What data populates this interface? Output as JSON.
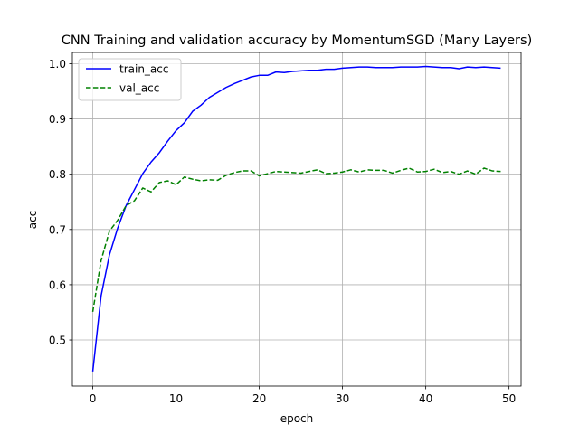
{
  "chart_data": {
    "type": "line",
    "title": "CNN Training and validation accuracy by MomentumSGD (Many Layers)",
    "xlabel": "epoch",
    "ylabel": "acc",
    "xlim": [
      -2.45,
      51.45
    ],
    "ylim": [
      0.4166,
      1.0204
    ],
    "xticks": [
      0,
      10,
      20,
      30,
      40,
      50
    ],
    "yticks": [
      0.5,
      0.6,
      0.7,
      0.8,
      0.9,
      1.0
    ],
    "xtick_labels": [
      "0",
      "10",
      "20",
      "30",
      "40",
      "50"
    ],
    "ytick_labels": [
      "0.5",
      "0.6",
      "0.7",
      "0.8",
      "0.9",
      "1.0"
    ],
    "grid": true,
    "legend_position": "top-left",
    "x": [
      0,
      1,
      2,
      3,
      4,
      5,
      6,
      7,
      8,
      9,
      10,
      11,
      12,
      13,
      14,
      15,
      16,
      17,
      18,
      19,
      20,
      21,
      22,
      23,
      24,
      25,
      26,
      27,
      28,
      29,
      30,
      31,
      32,
      33,
      34,
      35,
      36,
      37,
      38,
      39,
      40,
      41,
      42,
      43,
      44,
      45,
      46,
      47,
      48,
      49
    ],
    "series": [
      {
        "name": "train_acc",
        "color": "#0000ff",
        "style": "solid",
        "values": [
          0.443,
          0.58,
          0.654,
          0.703,
          0.743,
          0.772,
          0.801,
          0.822,
          0.839,
          0.86,
          0.879,
          0.893,
          0.914,
          0.925,
          0.939,
          0.948,
          0.957,
          0.964,
          0.97,
          0.976,
          0.979,
          0.979,
          0.985,
          0.984,
          0.986,
          0.987,
          0.988,
          0.988,
          0.99,
          0.99,
          0.992,
          0.993,
          0.994,
          0.994,
          0.993,
          0.993,
          0.993,
          0.994,
          0.994,
          0.994,
          0.995,
          0.994,
          0.993,
          0.993,
          0.991,
          0.994,
          0.993,
          0.994,
          0.993,
          0.992
        ]
      },
      {
        "name": "val_acc",
        "color": "#008000",
        "style": "dashed",
        "values": [
          0.551,
          0.644,
          0.697,
          0.717,
          0.743,
          0.752,
          0.775,
          0.768,
          0.785,
          0.788,
          0.781,
          0.795,
          0.791,
          0.788,
          0.79,
          0.789,
          0.798,
          0.803,
          0.806,
          0.806,
          0.797,
          0.801,
          0.805,
          0.804,
          0.803,
          0.802,
          0.805,
          0.808,
          0.801,
          0.802,
          0.804,
          0.808,
          0.804,
          0.808,
          0.807,
          0.807,
          0.802,
          0.807,
          0.811,
          0.804,
          0.805,
          0.809,
          0.803,
          0.805,
          0.8,
          0.806,
          0.8,
          0.811,
          0.806,
          0.805
        ]
      }
    ]
  }
}
